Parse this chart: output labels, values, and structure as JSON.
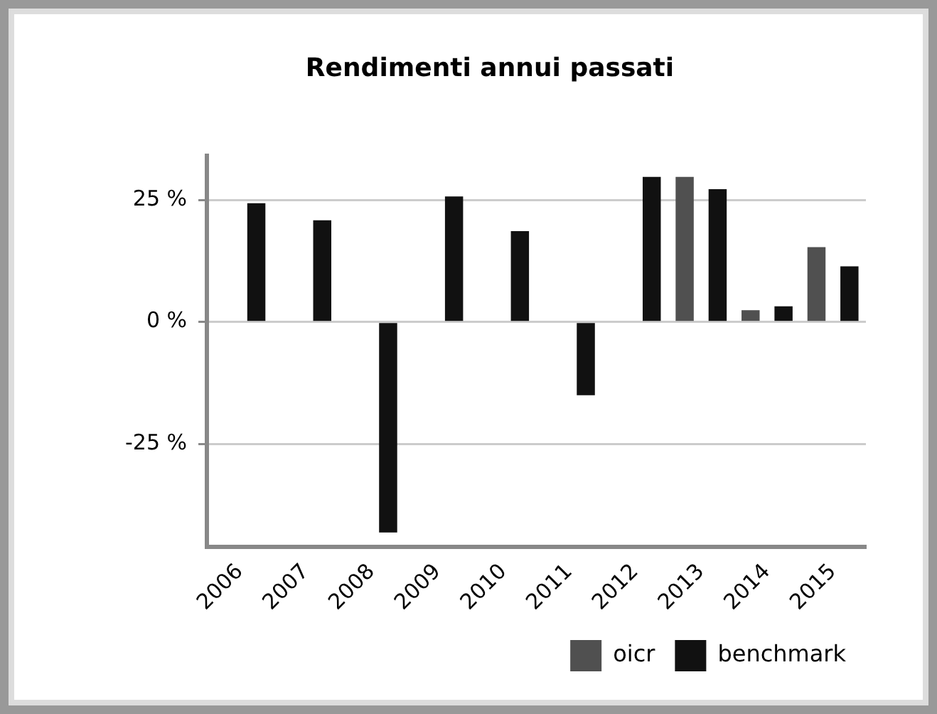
{
  "chart_data": {
    "type": "bar",
    "title": "Rendimenti annui passati",
    "categories": [
      "2006",
      "2007",
      "2008",
      "2009",
      "2010",
      "2011",
      "2012",
      "2013",
      "2014",
      "2015"
    ],
    "series": [
      {
        "name": "oicr",
        "color": "#505050",
        "values": [
          null,
          null,
          null,
          null,
          null,
          null,
          null,
          29.7,
          2.4,
          15.3
        ]
      },
      {
        "name": "benchmark",
        "color": "#111111",
        "values": [
          24.3,
          20.8,
          -43.1,
          25.7,
          18.6,
          -15.0,
          29.7,
          27.2,
          3.2,
          11.4
        ]
      }
    ],
    "ylim": [
      -46,
      34
    ],
    "yticks": [
      {
        "value": -25,
        "label": "-25 %"
      },
      {
        "value": 0,
        "label": "0 %"
      },
      {
        "value": 25,
        "label": "25 %"
      }
    ],
    "grid": "y",
    "legend": "bottom right"
  }
}
